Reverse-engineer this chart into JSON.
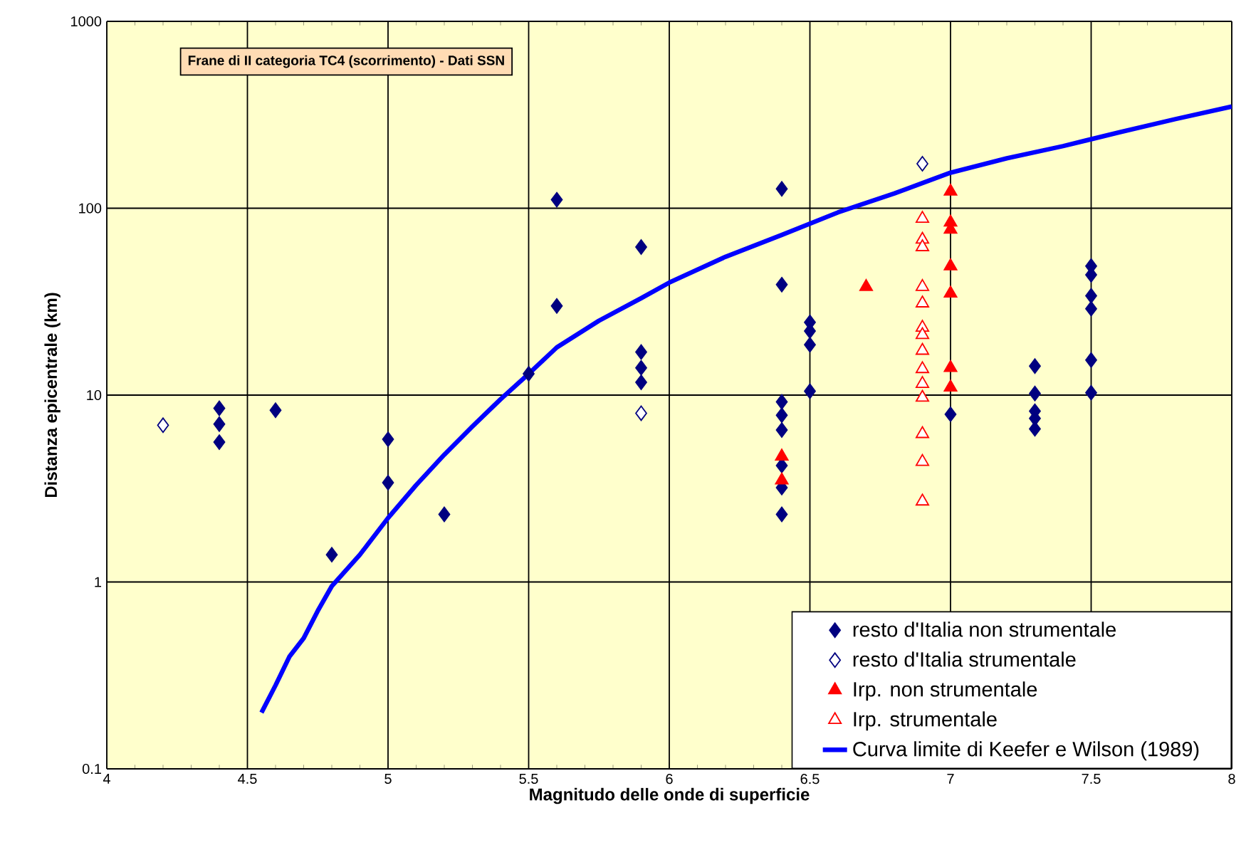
{
  "chart_data": {
    "type": "scatter",
    "title": "Frane di II categoria TC4 (scorrimento) - Dati SSN",
    "xlabel": "Magnitudo delle onde di superficie",
    "ylabel": "Distanza epicentrale (km)",
    "log": "y",
    "xlim": [
      4,
      8
    ],
    "ylim": [
      0.1,
      1000
    ],
    "xticks": [
      4,
      4.5,
      5,
      5.5,
      6,
      6.5,
      7,
      7.5,
      8
    ],
    "yticks": [
      0.1,
      1,
      10,
      100,
      1000
    ],
    "grid": true,
    "legend": "bottom right",
    "series": [
      {
        "name": "resto d'Italia non strumentale",
        "color": "#000080",
        "marker": "diamond",
        "x": [
          4.4,
          4.4,
          4.4,
          4.6,
          4.8,
          5.0,
          5.0,
          5.2,
          5.5,
          5.6,
          5.6,
          5.9,
          5.9,
          5.9,
          5.9,
          6.4,
          6.4,
          6.4,
          6.4,
          6.4,
          6.4,
          6.4,
          6.4,
          6.5,
          6.5,
          6.5,
          6.5,
          7.0,
          7.3,
          7.3,
          7.3,
          7.3,
          7.3,
          7.5,
          7.5,
          7.5,
          7.5,
          7.5,
          7.5
        ],
        "values": [
          8.5,
          7,
          5.6,
          8.3,
          1.4,
          5.8,
          3.4,
          2.3,
          13,
          111,
          30,
          62,
          17,
          14,
          11.7,
          127,
          39,
          9.2,
          7.8,
          6.5,
          4.2,
          3.2,
          2.3,
          24.5,
          22,
          18.6,
          10.5,
          7.9,
          14.3,
          10.2,
          8.2,
          7.5,
          6.6,
          49,
          44,
          34,
          29,
          15.4,
          10.3
        ]
      },
      {
        "name": "resto d'Italia strumentale",
        "color": "#000080",
        "marker": "diamond-open",
        "x": [
          4.2,
          5.9,
          6.9
        ],
        "values": [
          6.9,
          8,
          173
        ]
      },
      {
        "name": "Irp. non strumentale",
        "color": "#ff0000",
        "marker": "triangle",
        "x": [
          6.4,
          6.4,
          6.7,
          7.0,
          7.0,
          7.0,
          7.0,
          7.0,
          7.0,
          7.0
        ],
        "values": [
          4.7,
          3.5,
          38,
          123,
          84,
          77,
          49,
          35,
          14,
          11
        ]
      },
      {
        "name": "Irp. strumentale",
        "color": "#ff0000",
        "marker": "triangle-open",
        "x": [
          6.9,
          6.9,
          6.9,
          6.9,
          6.9,
          6.9,
          6.9,
          6.9,
          6.9,
          6.9,
          6.9,
          6.9,
          6.9,
          6.9
        ],
        "values": [
          88,
          68,
          62,
          38,
          31,
          23,
          21,
          17.3,
          13.8,
          11.5,
          9.7,
          6.2,
          4.4,
          2.7
        ]
      },
      {
        "name": "Curva limite di Keefer e Wilson (1989)",
        "type": "line",
        "color": "#0000ff",
        "marker": "none",
        "x": [
          4.55,
          4.6,
          4.65,
          4.7,
          4.75,
          4.8,
          4.9,
          5.0,
          5.1,
          5.2,
          5.3,
          5.4,
          5.5,
          5.6,
          5.75,
          5.9,
          6.0,
          6.2,
          6.4,
          6.6,
          6.8,
          7.0,
          7.2,
          7.4,
          7.6,
          7.8,
          8.0
        ],
        "values": [
          0.2,
          0.28,
          0.4,
          0.5,
          0.7,
          0.95,
          1.4,
          2.2,
          3.3,
          4.8,
          6.8,
          9.5,
          13,
          18,
          25,
          33,
          40,
          55,
          72,
          95,
          120,
          155,
          185,
          215,
          255,
          300,
          350
        ]
      }
    ]
  }
}
